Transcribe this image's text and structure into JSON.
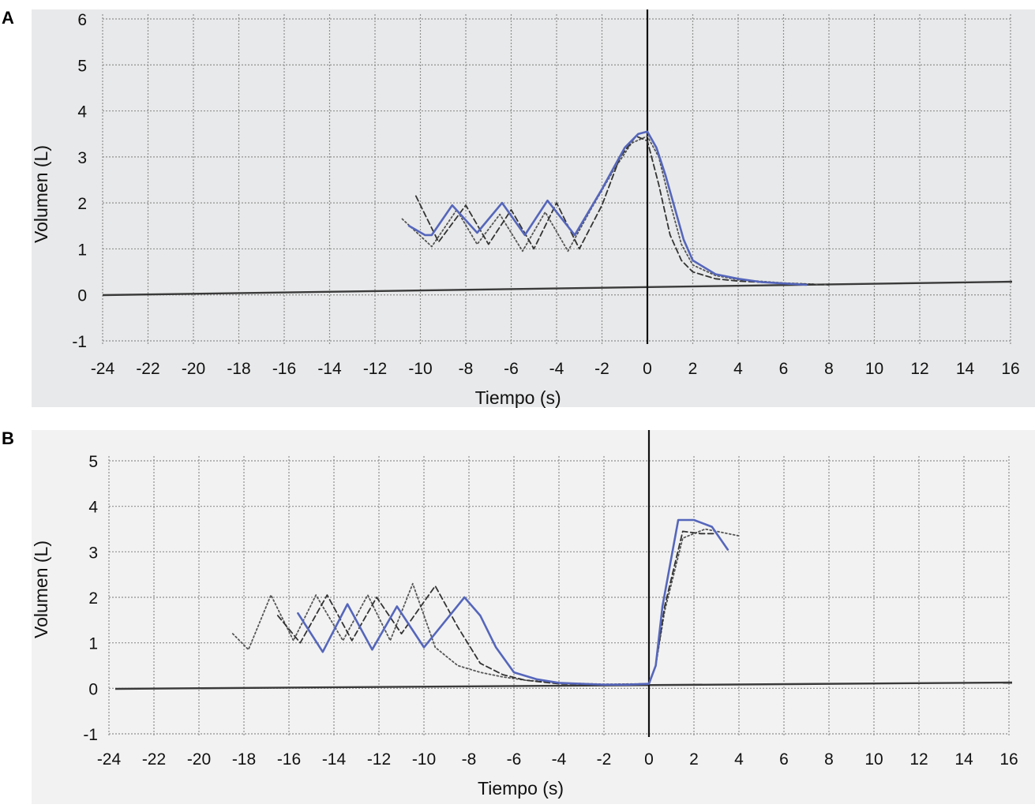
{
  "panels": [
    {
      "letter": "A"
    },
    {
      "letter": "B"
    }
  ],
  "colors": {
    "measured": "#5566bb",
    "trial_dash": "#333333",
    "trial_dot": "#555555",
    "grid": "#8f8f8f",
    "paper_a": "#e8e9ea",
    "paper_b": "#f2f2f2"
  },
  "chart_data": [
    {
      "type": "line",
      "panel": "A",
      "title": "",
      "xlabel": "Tiempo (s)",
      "ylabel": "Volumen (L)",
      "xlim": [
        -24,
        16
      ],
      "ylim": [
        -1,
        6
      ],
      "xticks": [
        -24,
        -22,
        -20,
        -18,
        -16,
        -14,
        -12,
        -10,
        -8,
        -6,
        -4,
        -2,
        0,
        2,
        4,
        6,
        8,
        10,
        12,
        14,
        16
      ],
      "yticks": [
        -1,
        0,
        1,
        2,
        3,
        4,
        5,
        6
      ],
      "grid": true,
      "series": [
        {
          "style": "solid",
          "x": [
            -10.5,
            -9.8,
            -9.5,
            -8.6,
            -7.5,
            -6.4,
            -5.4,
            -4.4,
            -3.2,
            -2,
            -1.5,
            -1,
            -0.4,
            0,
            0.4,
            0.8,
            1.2,
            1.6,
            2,
            3,
            4,
            5,
            7
          ],
          "y": [
            1.5,
            1.3,
            1.3,
            1.95,
            1.35,
            2.0,
            1.3,
            2.05,
            1.3,
            2.3,
            2.75,
            3.2,
            3.5,
            3.55,
            3.2,
            2.6,
            1.9,
            1.2,
            0.75,
            0.45,
            0.35,
            0.28,
            0.22
          ]
        },
        {
          "style": "dashed",
          "x": [
            -10.2,
            -9.2,
            -8,
            -7,
            -6,
            -5,
            -4,
            -3,
            -2,
            -1.2,
            -0.5,
            0,
            0.5,
            1,
            1.5,
            2,
            3,
            4,
            6,
            8
          ],
          "y": [
            2.15,
            1.15,
            1.95,
            1.1,
            1.85,
            1.0,
            2.0,
            1.0,
            1.95,
            3.0,
            3.45,
            3.35,
            2.4,
            1.3,
            0.75,
            0.5,
            0.35,
            0.3,
            0.25,
            0.22
          ]
        },
        {
          "style": "dotted",
          "x": [
            -10.8,
            -9.5,
            -8.4,
            -7.5,
            -6.5,
            -5.5,
            -4.5,
            -3.5,
            -2.5,
            -1.5,
            -0.7,
            0,
            0.5,
            1,
            1.5,
            2,
            3,
            4,
            6,
            8
          ],
          "y": [
            1.65,
            1.05,
            1.85,
            1.1,
            1.75,
            0.95,
            1.8,
            0.95,
            1.85,
            2.7,
            3.3,
            3.45,
            3.0,
            2.0,
            1.1,
            0.65,
            0.42,
            0.33,
            0.26,
            0.22
          ]
        }
      ]
    },
    {
      "type": "line",
      "panel": "B",
      "title": "",
      "xlabel": "Tiempo (s)",
      "ylabel": "Volumen (L)",
      "xlim": [
        -24,
        16
      ],
      "ylim": [
        -1,
        5
      ],
      "xticks": [
        -24,
        -22,
        -20,
        -18,
        -16,
        -14,
        -12,
        -10,
        -8,
        -6,
        -4,
        -2,
        0,
        2,
        4,
        6,
        8,
        10,
        12,
        14,
        16
      ],
      "yticks": [
        -1,
        0,
        1,
        2,
        3,
        4,
        5
      ],
      "grid": true,
      "series": [
        {
          "style": "solid",
          "x": [
            -15.6,
            -14.5,
            -13.4,
            -12.3,
            -11.2,
            -10,
            -8.2,
            -7.5,
            -6.8,
            -6,
            -5,
            -4,
            -2,
            -1,
            0,
            0.3,
            0.6,
            1.3,
            2,
            2.8,
            3.5
          ],
          "y": [
            1.65,
            0.8,
            1.85,
            0.85,
            1.8,
            0.9,
            2.0,
            1.6,
            0.9,
            0.35,
            0.2,
            0.12,
            0.08,
            0.08,
            0.1,
            0.5,
            1.8,
            3.7,
            3.7,
            3.55,
            3.05
          ]
        },
        {
          "style": "dashed",
          "x": [
            -16.5,
            -15.5,
            -14.3,
            -13.2,
            -12.1,
            -11,
            -9.5,
            -8.5,
            -7.5,
            -6.5,
            -5.5,
            -4,
            -2,
            0,
            0.3,
            0.7,
            1.5,
            2.3,
            3
          ],
          "y": [
            1.6,
            1.0,
            2.05,
            1.05,
            2.0,
            1.2,
            2.25,
            1.35,
            0.55,
            0.3,
            0.18,
            0.1,
            0.08,
            0.1,
            0.5,
            1.8,
            3.45,
            3.4,
            3.4
          ]
        },
        {
          "style": "dotted",
          "x": [
            -18.5,
            -17.8,
            -16.8,
            -15.8,
            -14.8,
            -13.6,
            -12.5,
            -11.5,
            -10.5,
            -9.5,
            -8.5,
            -7.5,
            -6.5,
            -5.5,
            -4,
            -2,
            0,
            0.3,
            0.7,
            1.5,
            2.5,
            4
          ],
          "y": [
            1.2,
            0.85,
            2.05,
            1.05,
            2.05,
            1.05,
            2.05,
            1.05,
            2.3,
            0.9,
            0.5,
            0.35,
            0.25,
            0.18,
            0.12,
            0.09,
            0.1,
            0.5,
            1.7,
            3.3,
            3.5,
            3.35
          ]
        }
      ]
    }
  ]
}
